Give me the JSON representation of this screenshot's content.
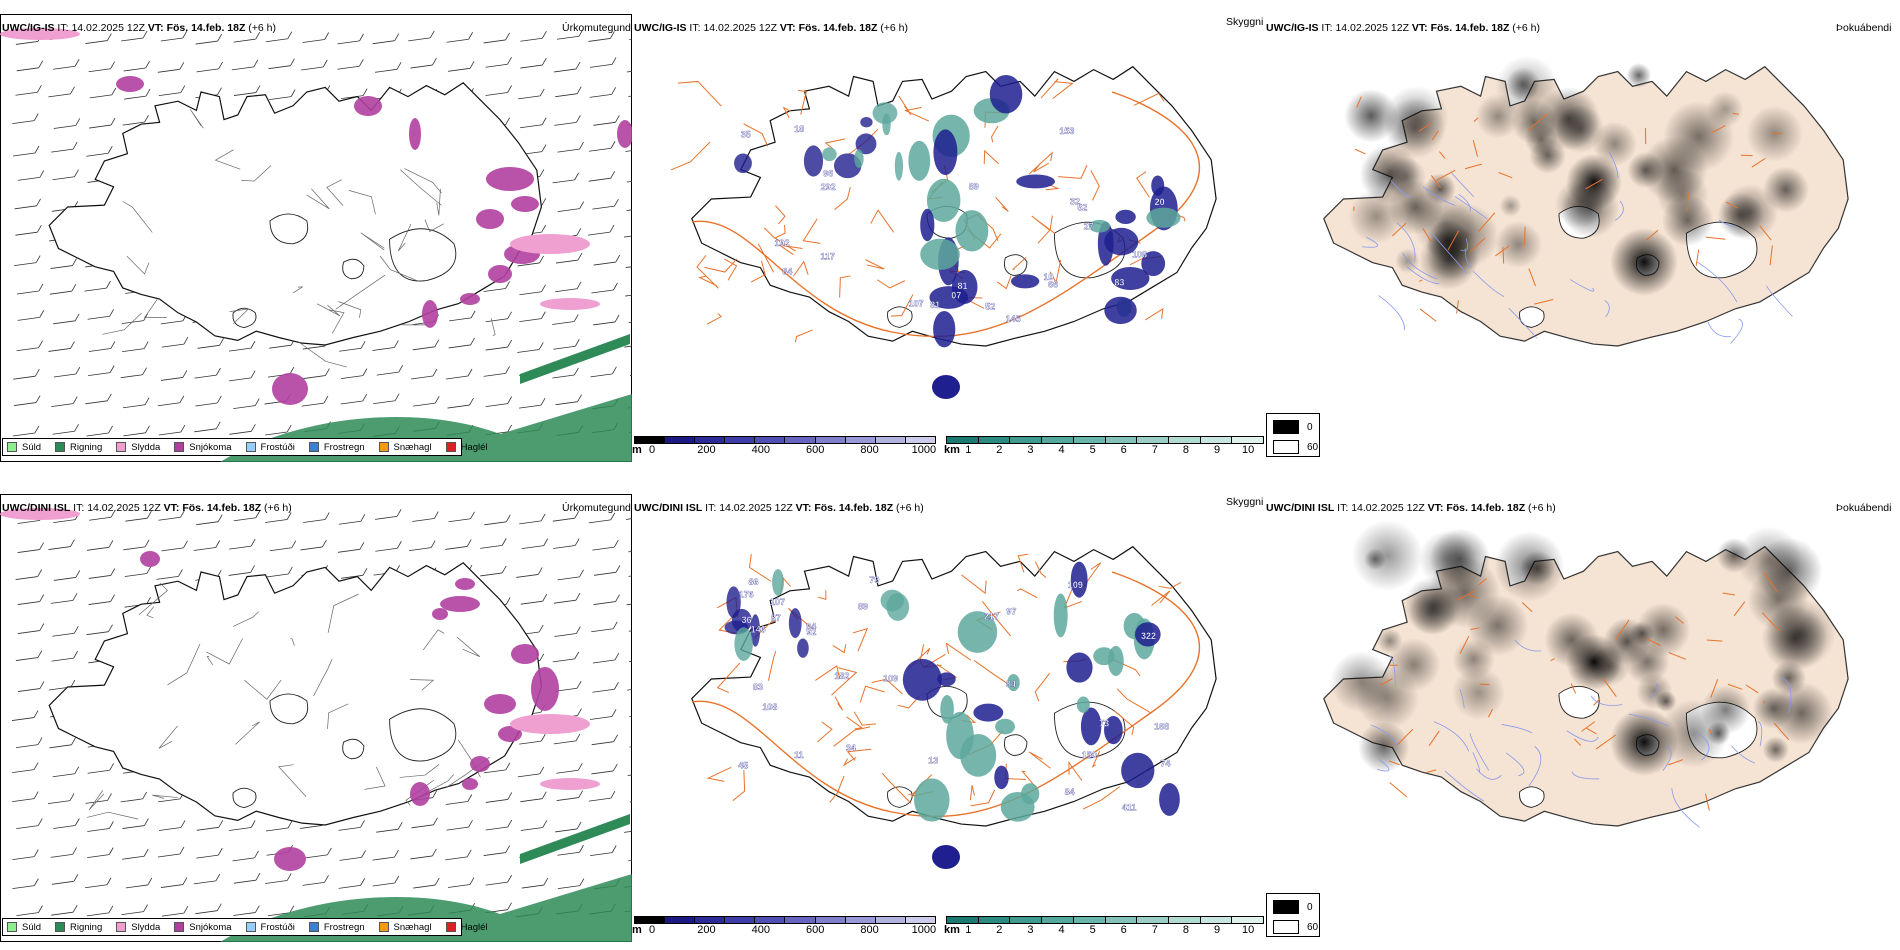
{
  "panels": [
    {
      "row": "top",
      "precip": {
        "model": "UWC/IG-IS",
        "it_label": "IT:",
        "it_value": "14.02.2025 12Z",
        "vt_label": "VT:",
        "vt_value": "Fös. 14.feb. 18Z",
        "lead": "(+6 h)",
        "param": "Úrkomutegund"
      },
      "cloud": {
        "model": "UWC/IG-IS",
        "it_label": "IT:",
        "it_value": "14.02.2025 12Z",
        "vt_label": "VT:",
        "vt_value": "Fös. 14.feb. 18Z",
        "lead": "(+6 h)",
        "param": "Skyggni",
        "labels": [
          "107",
          "81",
          "89",
          "35",
          "20",
          "84",
          "07",
          "192",
          "32",
          "96",
          "117",
          "83",
          "81",
          "145",
          "153",
          "52",
          "10",
          "66",
          "108",
          "52",
          "18",
          "27",
          "292"
        ]
      },
      "fog": {
        "model": "UWC/IG-IS",
        "it_label": "IT:",
        "it_value": "14.02.2025 12Z",
        "vt_label": "VT:",
        "vt_value": "Fös. 14.feb. 18Z",
        "lead": "(+6 h)",
        "param": "Þokuábendi"
      }
    },
    {
      "row": "bottom",
      "precip": {
        "model": "UWC/DINI ISL",
        "it_label": "IT:",
        "it_value": "14.02.2025 12Z",
        "vt_label": "VT:",
        "vt_value": "Fös. 14.feb. 18Z",
        "lead": "(+6 h)",
        "param": "Úrkomutegund"
      },
      "cloud": {
        "model": "UWC/DINI ISL",
        "it_label": "IT:",
        "it_value": "14.02.2025 12Z",
        "vt_label": "VT:",
        "vt_value": "Fös. 14.feb. 18Z",
        "lead": "(+6 h)",
        "param": "Skyggni",
        "labels": [
          "107",
          "83",
          "84",
          "45",
          "97",
          "86",
          "34",
          "74",
          "79",
          "94",
          "13",
          "150",
          "108",
          "109",
          "73",
          "89",
          "176",
          "84",
          "92",
          "109",
          "411",
          "146",
          "168",
          "217",
          "182",
          "322",
          "11",
          "87",
          "36"
        ]
      },
      "fog": {
        "model": "UWC/DINI ISL",
        "it_label": "IT:",
        "it_value": "14.02.2025 12Z",
        "vt_label": "VT:",
        "vt_value": "Fös. 14.feb. 18Z",
        "lead": "(+6 h)",
        "param": "Þokuábendi"
      }
    }
  ],
  "precip_legend": [
    {
      "label": "Súld",
      "color": "#90ee90"
    },
    {
      "label": "Rigning",
      "color": "#2e8b57"
    },
    {
      "label": "Slydda",
      "color": "#f0a0d0"
    },
    {
      "label": "Snjókoma",
      "color": "#b040a0"
    },
    {
      "label": "Frostúði",
      "color": "#99ccff"
    },
    {
      "label": "Frostregn",
      "color": "#3a7fd0"
    },
    {
      "label": "Snæhagl",
      "color": "#f39c12"
    },
    {
      "label": "Haglél",
      "color": "#e02020"
    }
  ],
  "cloud_base_bar": {
    "unit": "m",
    "ticks": [
      "0",
      "200",
      "400",
      "600",
      "800",
      "1000"
    ],
    "colors": [
      "#000000",
      "#1a1a80",
      "#2b2b98",
      "#3d3da8",
      "#5050b4",
      "#6666c0",
      "#7f7fcc",
      "#9999d8",
      "#b3b3e0",
      "#ccccea"
    ]
  },
  "visibility_bar": {
    "unit": "km",
    "ticks": [
      "1",
      "2",
      "3",
      "4",
      "5",
      "6",
      "7",
      "8",
      "9",
      "10"
    ],
    "colors": [
      "#1a7a70",
      "#2d8a80",
      "#3f9a90",
      "#55a89e",
      "#6bb6ac",
      "#82c2b9",
      "#99cec6",
      "#b1dad3",
      "#c8e6e0",
      "#e0f2ee"
    ]
  },
  "fog_legend": {
    "items": [
      {
        "label": "0",
        "color": "#000000"
      },
      {
        "label": "60",
        "color": "#ffffff"
      }
    ]
  },
  "colors": {
    "land_fog": "#f5e3d3",
    "roads": "#e8722a",
    "rivers": "#8899ee",
    "coast": "#111111",
    "snow": "#b040a0",
    "rain": "#2e8b57",
    "sleet": "#f0a0d0",
    "cloud_low": "#1f1f8f",
    "vis_teal": "#5da89c"
  }
}
